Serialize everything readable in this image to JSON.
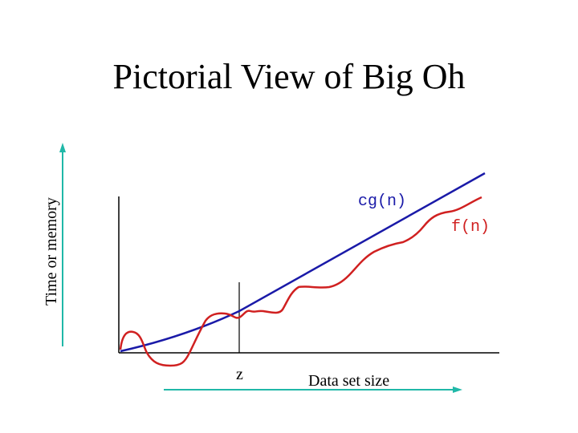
{
  "title": "Pictorial View of Big Oh",
  "y_axis_label": "Time or memory",
  "x_axis_label": "Data set size",
  "z_label": "z",
  "cg_label": "cg(n)",
  "f_label": "f(n)",
  "colors": {
    "cg": "#1a1aa8",
    "f": "#d02020",
    "arrow": "#20b8a8",
    "axis": "#000000"
  }
}
